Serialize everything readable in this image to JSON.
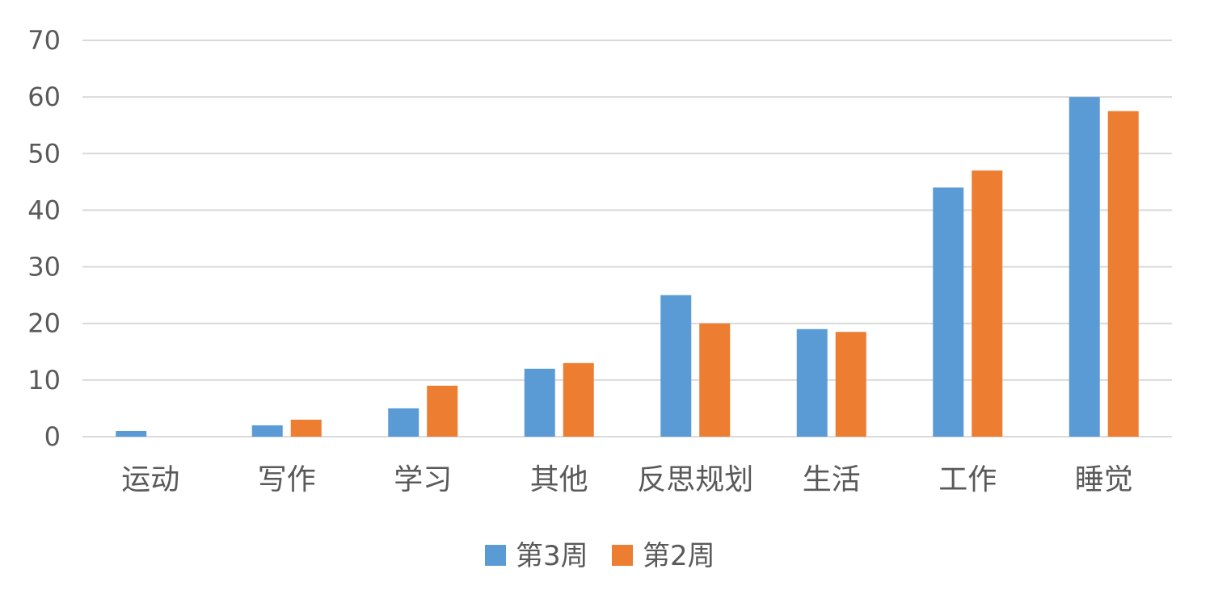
{
  "chart_data": {
    "type": "bar",
    "categories": [
      "运动",
      "写作",
      "学习",
      "其他",
      "反思规划",
      "生活",
      "工作",
      "睡觉"
    ],
    "series": [
      {
        "name": "第3周",
        "color": "#5B9BD5",
        "values": [
          1,
          2,
          5,
          12,
          25,
          19,
          44,
          60
        ]
      },
      {
        "name": "第2周",
        "color": "#ED7D31",
        "values": [
          0,
          3,
          9,
          13,
          20,
          18.5,
          47,
          57.5
        ]
      }
    ],
    "yticks": [
      0,
      10,
      20,
      30,
      40,
      50,
      60,
      70
    ],
    "ylim": [
      0,
      70
    ],
    "grid": true,
    "legend_position": "bottom",
    "gridline_color": "#D9D9D9",
    "text_color": "#595959"
  }
}
